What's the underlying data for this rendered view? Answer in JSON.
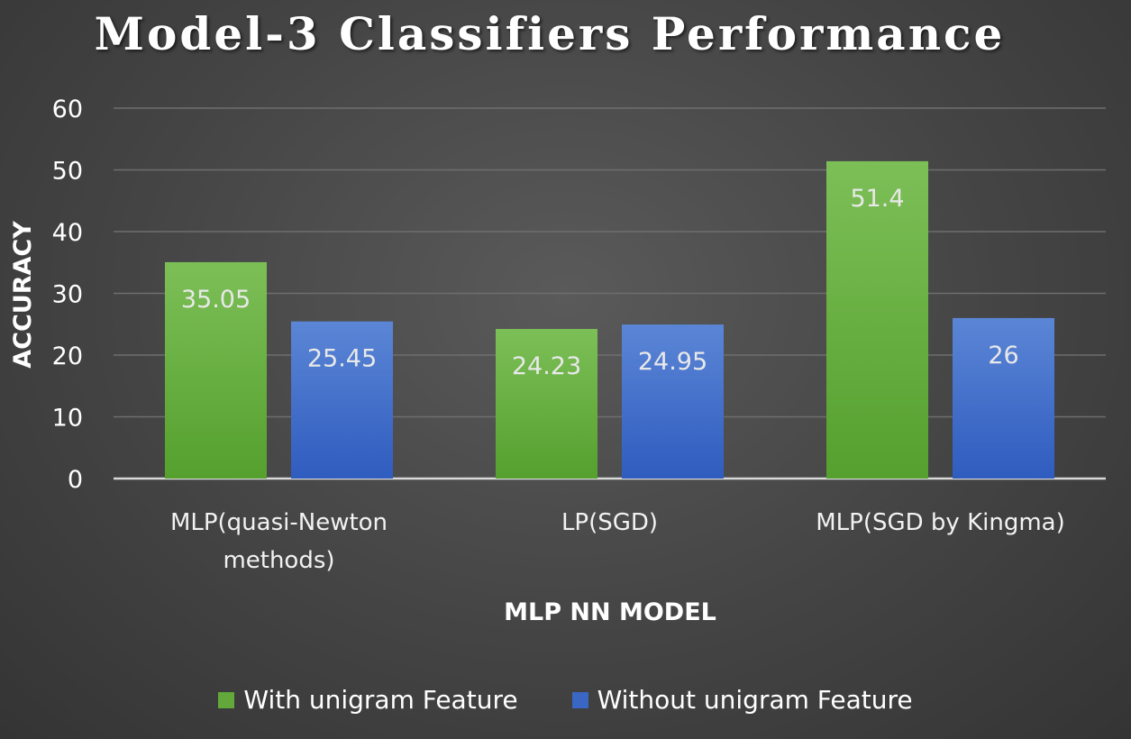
{
  "chart_data": {
    "type": "bar",
    "title": "Model-3 Classifiers Performance",
    "xlabel": "MLP NN MODEL",
    "ylabel": "ACCURACY",
    "categories": [
      [
        "MLP(quasi-Newton",
        "methods)"
      ],
      [
        "LP(SGD)"
      ],
      [
        "MLP(SGD by Kingma)"
      ]
    ],
    "series": [
      {
        "name": "With unigram Feature",
        "color": "#62a83a",
        "values": [
          35.05,
          24.23,
          51.4
        ]
      },
      {
        "name": "Without unigram Feature",
        "color": "#3a66c4",
        "values": [
          25.45,
          24.95,
          26
        ]
      }
    ],
    "value_labels": [
      [
        "35.05",
        "24.23",
        "51.4"
      ],
      [
        "25.45",
        "24.95",
        "26"
      ]
    ],
    "ylim": [
      0,
      60
    ],
    "yticks": [
      0,
      10,
      20,
      30,
      40,
      50,
      60
    ],
    "grid": true,
    "legend_position": "bottom"
  }
}
